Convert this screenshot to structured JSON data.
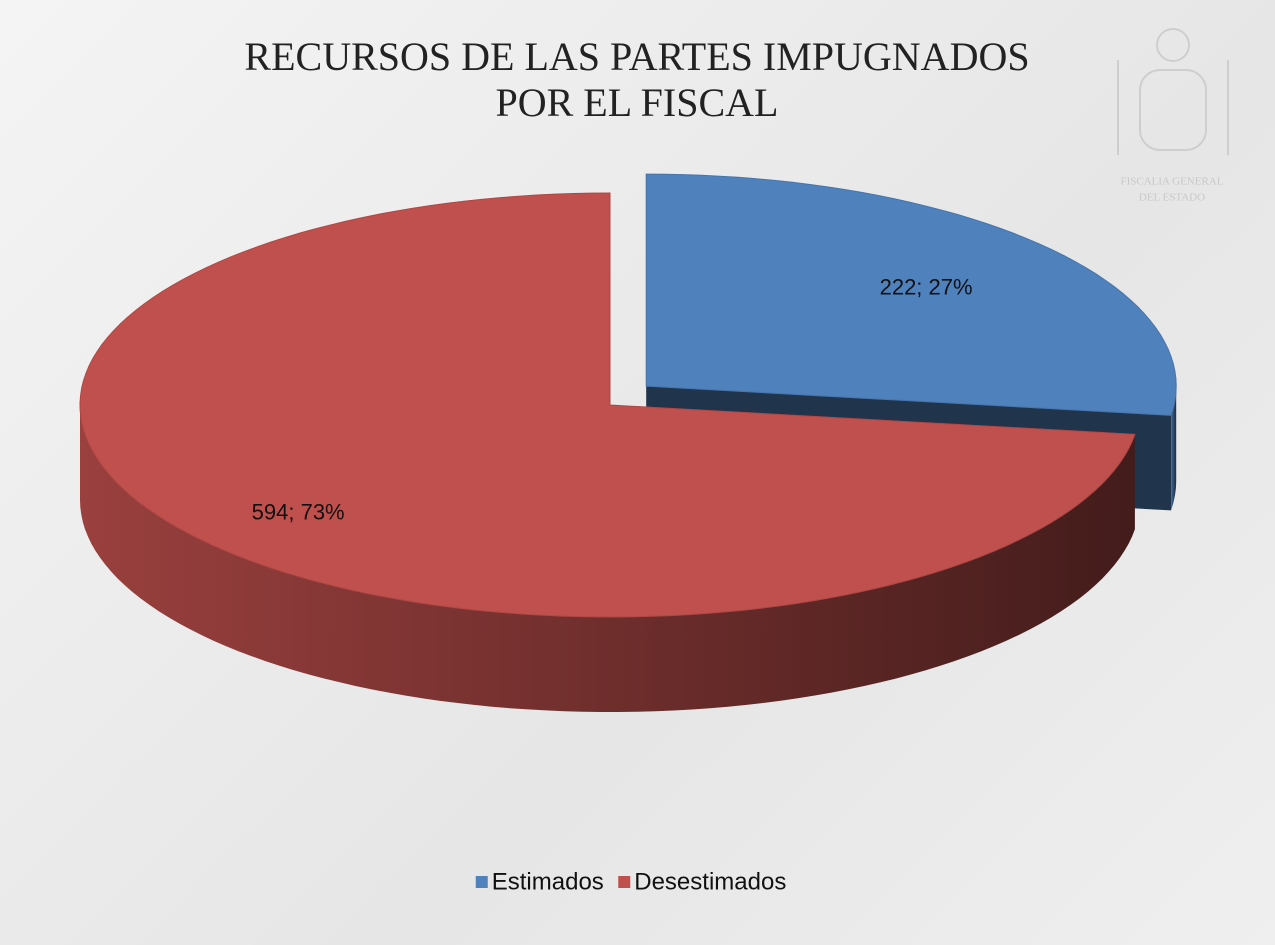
{
  "chart_data": {
    "type": "pie3d",
    "title": "RECURSOS DE LAS PARTES IMPUGNADOS POR EL FISCAL",
    "categories": [
      "Estimados",
      "Desestimados"
    ],
    "values": [
      222,
      594
    ],
    "value_labels": [
      "222; 27%",
      "594; 73%"
    ],
    "colors": [
      "#4f81bd",
      "#c0504d"
    ],
    "legend": "bottom"
  },
  "watermark": [
    "FISCALIA GENERAL",
    "DEL ESTADO"
  ]
}
